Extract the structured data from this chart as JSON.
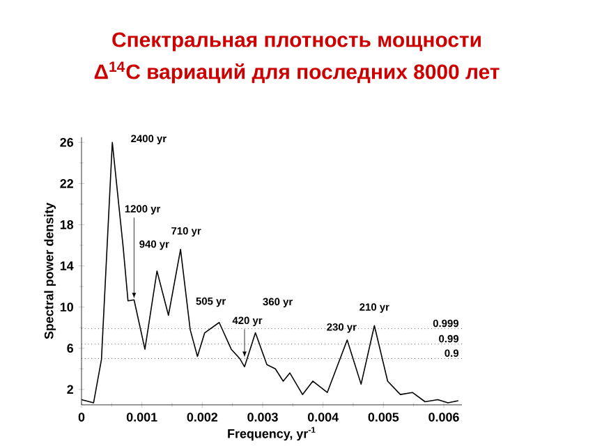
{
  "chart_data": {
    "type": "line",
    "title": "Спектральная плотность мощности",
    "subtitle": "Δ$^{14}$C вариаций для последних 8000 лет",
    "xlabel": "Frequency, yr$^{-1}$",
    "ylabel": "Spectral power density",
    "x": [
      0,
      0.0002,
      0.00033,
      0.00051,
      0.00069,
      0.00077,
      0.00087,
      0.00105,
      0.00125,
      0.00144,
      0.00164,
      0.0018,
      0.00192,
      0.00204,
      0.00228,
      0.00248,
      0.00262,
      0.0027,
      0.00288,
      0.00307,
      0.00321,
      0.00334,
      0.00345,
      0.00366,
      0.00383,
      0.00407,
      0.0044,
      0.00463,
      0.00485,
      0.00507,
      0.00528,
      0.00548,
      0.00569,
      0.0059,
      0.00607,
      0.00624
    ],
    "values": [
      1.0,
      0.7,
      4.9,
      26.0,
      15.8,
      10.6,
      10.7,
      5.9,
      13.5,
      9.2,
      15.6,
      7.8,
      5.2,
      7.5,
      8.5,
      5.9,
      5.0,
      4.2,
      7.5,
      4.4,
      4.0,
      2.8,
      3.6,
      1.5,
      2.8,
      1.7,
      6.8,
      2.5,
      8.2,
      2.8,
      1.5,
      1.7,
      0.8,
      1.0,
      0.7,
      0.9
    ],
    "color": "#000000",
    "marker": "none",
    "line_style": "solid",
    "grid": false,
    "xlim": [
      0,
      0.0063
    ],
    "xticks": [
      0,
      0.001,
      0.002,
      0.003,
      0.004,
      0.005,
      0.006
    ],
    "ylim": [
      0.5,
      26.5
    ],
    "yticks": [
      2,
      6,
      10,
      14,
      18,
      22,
      26
    ],
    "ref_lines": [
      {
        "axis": "y",
        "value": 7.9,
        "line_style": "dotted"
      },
      {
        "axis": "y",
        "value": 6.4,
        "line_style": "dotted"
      },
      {
        "axis": "y",
        "value": 5.0,
        "line_style": "dotted"
      }
    ],
    "annotations": [
      {
        "text": "2400 yr",
        "x": 0.00051,
        "y": 26.0
      },
      {
        "text": "1200 yr",
        "x": 0.00087,
        "y": 10.7
      },
      {
        "text": "940 yr",
        "x": 0.00125,
        "y": 13.5
      },
      {
        "text": "710 yr",
        "x": 0.00164,
        "y": 15.6
      },
      {
        "text": "505 yr",
        "x": 0.00228,
        "y": 8.5
      },
      {
        "text": "420 yr",
        "x": 0.0027,
        "y": 5.0
      },
      {
        "text": "360 yr",
        "x": 0.00288,
        "y": 7.5
      },
      {
        "text": "230 yr",
        "x": 0.0044,
        "y": 6.8
      },
      {
        "text": "210 yr",
        "x": 0.00485,
        "y": 8.2
      },
      {
        "text": "0.999",
        "x": 0.0063,
        "y": 7.9
      },
      {
        "text": "0.99",
        "x": 0.0063,
        "y": 6.4
      },
      {
        "text": "0.9",
        "x": 0.0063,
        "y": 5.0
      }
    ]
  }
}
